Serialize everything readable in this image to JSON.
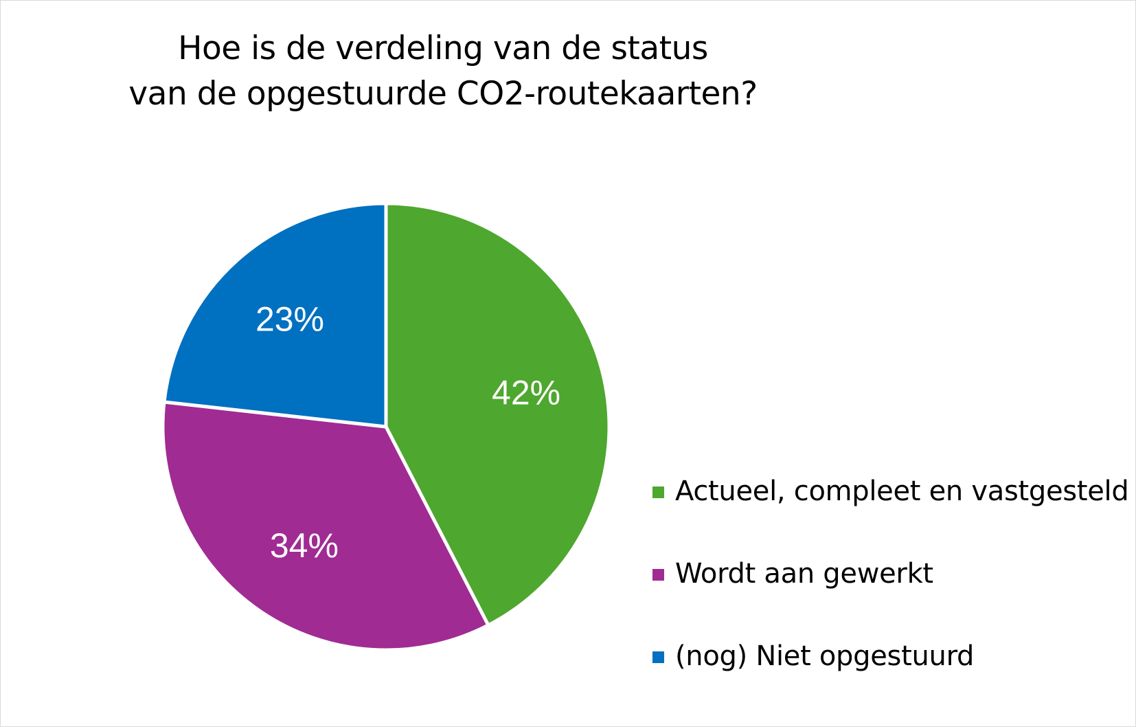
{
  "chart_data": {
    "type": "pie",
    "title": [
      "Hoe is de verdeling van de status",
      "van de opgestuurde CO2-routekaarten?"
    ],
    "categories": [
      "Actueel, compleet en vastgesteld",
      "Wordt aan gewerkt",
      "(nog) Niet opgestuurd"
    ],
    "values": [
      42,
      34,
      23
    ],
    "data_labels": [
      "42%",
      "34%",
      "23%"
    ],
    "colors": [
      "#4ea72e",
      "#a02b93",
      "#0070c0"
    ],
    "legend_position": "right",
    "start_angle": "12 o'clock",
    "direction": "clockwise"
  }
}
